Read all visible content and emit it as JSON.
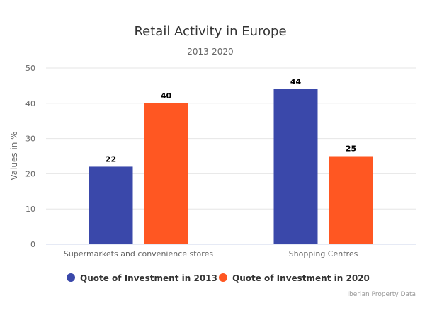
{
  "chart_data": {
    "type": "bar",
    "title": "Retail Activity in Europe",
    "subtitle": "2013-2020",
    "ylabel": "Values in %",
    "xlabel": "",
    "categories": [
      "Supermarkets and convenience stores",
      "Shopping Centres"
    ],
    "series": [
      {
        "name": "Quote of Investment in 2013",
        "values": [
          22,
          44
        ],
        "color": "#3a48aa"
      },
      {
        "name": "Quote of Investment in 2020",
        "values": [
          40,
          25
        ],
        "color": "#ff5722"
      }
    ],
    "ylim": [
      0,
      50
    ],
    "yticks": [
      0,
      10,
      20,
      30,
      40,
      50
    ],
    "grid": true,
    "legend_position": "bottom-center",
    "data_labels": true
  },
  "credits": "Iberian Property Data"
}
